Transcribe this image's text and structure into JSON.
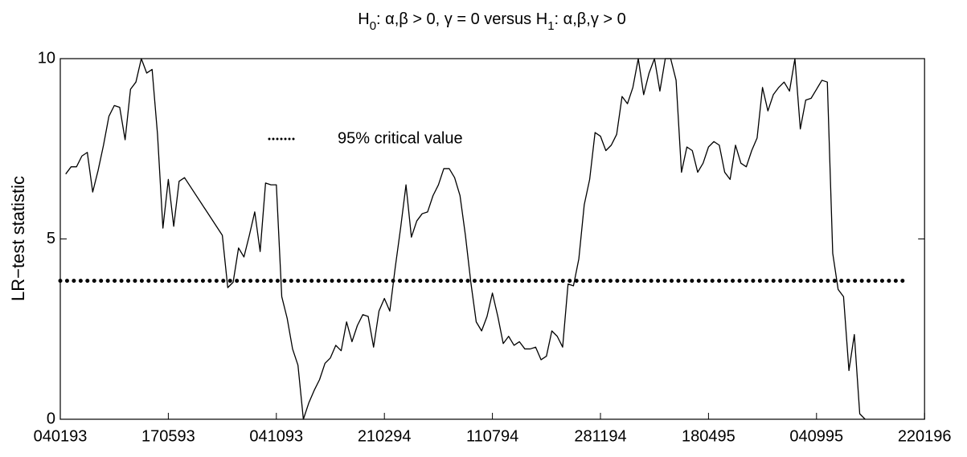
{
  "chart_data": {
    "type": "line",
    "title": [
      {
        "text": "H"
      },
      {
        "text": "0",
        "sub": true
      },
      {
        "text": ": α,β > 0, γ = 0  versus  H"
      },
      {
        "text": "1",
        "sub": true
      },
      {
        "text": ": α,β,γ > 0"
      }
    ],
    "y_label": "LR−test statistic",
    "xlim": [
      0,
      160
    ],
    "xticks": [
      {
        "value": 0,
        "label": "040193"
      },
      {
        "value": 20,
        "label": "170593"
      },
      {
        "value": 40,
        "label": "041093"
      },
      {
        "value": 60,
        "label": "210294"
      },
      {
        "value": 80,
        "label": "110794"
      },
      {
        "value": 100,
        "label": "281194"
      },
      {
        "value": 120,
        "label": "180495"
      },
      {
        "value": 140,
        "label": "040995"
      },
      {
        "value": 160,
        "label": "220196"
      }
    ],
    "ylim": [
      0,
      10
    ],
    "yticks": [
      0,
      5,
      10
    ],
    "legend": "upper left",
    "series": [
      {
        "name": "LR-test statistic",
        "color": "#000000",
        "style": "solid",
        "x": [
          1,
          2,
          3,
          4,
          5,
          6,
          7,
          8,
          9,
          10,
          11,
          12,
          13,
          14,
          15,
          16,
          17,
          18,
          19,
          20,
          21,
          22,
          23,
          30,
          31,
          32,
          33,
          34,
          35,
          36,
          37,
          38,
          39,
          40,
          41,
          42,
          43,
          44,
          45,
          46,
          47,
          48,
          49,
          50,
          51,
          52,
          53,
          54,
          55,
          56,
          57,
          58,
          59,
          60,
          61,
          62,
          63,
          64,
          65,
          66,
          67,
          68,
          69,
          70,
          71,
          72,
          73,
          74,
          75,
          76,
          77,
          78,
          79,
          80,
          81,
          82,
          83,
          84,
          85,
          86,
          87,
          88,
          89,
          90,
          91,
          92,
          93,
          94,
          95,
          96,
          97,
          98,
          99,
          100,
          101,
          102,
          103,
          104,
          105,
          106,
          107,
          108,
          109,
          110,
          111,
          112,
          113,
          114,
          115,
          116,
          117,
          118,
          119,
          120,
          121,
          122,
          123,
          124,
          125,
          126,
          127,
          128,
          129,
          130,
          131,
          132,
          133,
          134,
          135,
          136,
          137,
          138,
          139,
          140,
          141,
          142,
          143,
          144,
          145,
          146,
          147,
          148,
          149
        ],
        "values": [
          6.8,
          7.0,
          7.0,
          7.3,
          7.4,
          6.3,
          6.9,
          7.6,
          8.4,
          8.7,
          8.65,
          7.75,
          9.15,
          9.35,
          10,
          9.6,
          9.7,
          7.9,
          5.3,
          6.65,
          5.35,
          6.6,
          6.7,
          5.1,
          3.65,
          3.8,
          4.75,
          4.5,
          5.1,
          5.75,
          4.65,
          6.55,
          6.5,
          6.5,
          3.4,
          2.8,
          1.95,
          1.5,
          0,
          0.45,
          0.8,
          1.1,
          1.55,
          1.7,
          2.05,
          1.9,
          2.7,
          2.15,
          2.6,
          2.9,
          2.85,
          2.0,
          3.0,
          3.35,
          3.0,
          4.2,
          5.3,
          6.5,
          5.05,
          5.5,
          5.7,
          5.75,
          6.2,
          6.5,
          6.95,
          6.95,
          6.7,
          6.2,
          5.1,
          3.8,
          2.7,
          2.45,
          2.85,
          3.5,
          2.85,
          2.1,
          2.3,
          2.05,
          2.15,
          1.95,
          1.95,
          2.0,
          1.65,
          1.75,
          2.45,
          2.3,
          2.0,
          3.75,
          3.7,
          4.45,
          5.95,
          6.65,
          7.95,
          7.85,
          7.45,
          7.6,
          7.9,
          8.95,
          8.75,
          9.2,
          10,
          9.0,
          9.6,
          10,
          9.1,
          10,
          10,
          9.4,
          6.85,
          7.55,
          7.45,
          6.85,
          7.1,
          7.55,
          7.7,
          7.6,
          6.85,
          6.65,
          7.6,
          7.1,
          7.0,
          7.45,
          7.8,
          9.2,
          8.55,
          9.0,
          9.2,
          9.35,
          9.1,
          10,
          8.05,
          8.85,
          8.9,
          9.15,
          9.4,
          9.35,
          4.6,
          3.6,
          3.4,
          1.35,
          2.35,
          0.15,
          0
        ]
      },
      {
        "name": "95% critical value",
        "color": "#000000",
        "style": "dotted",
        "x": [
          0,
          157
        ],
        "values": [
          3.84,
          3.84
        ]
      }
    ]
  }
}
